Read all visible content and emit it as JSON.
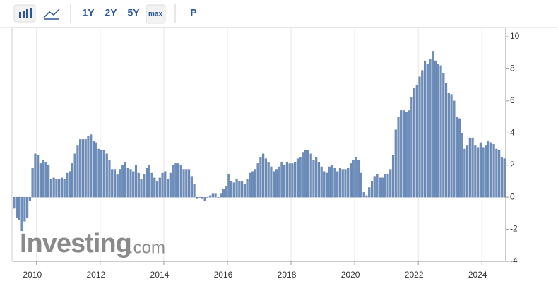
{
  "toolbar": {
    "buttons": [
      "1Y",
      "2Y",
      "5Y",
      "max",
      "P"
    ]
  },
  "watermark": {
    "brand": "Investing",
    "suffix": ".com"
  },
  "chart_data": {
    "type": "bar",
    "color": "#6f8fbd",
    "categories": [
      null,
      null,
      null,
      null,
      null,
      null,
      null,
      null,
      null,
      "2010",
      null,
      null,
      null,
      null,
      null,
      null,
      null,
      null,
      null,
      null,
      null,
      null,
      null,
      null,
      null,
      null,
      null,
      null,
      null,
      null,
      null,
      null,
      null,
      "2012",
      null,
      null,
      null,
      null,
      null,
      null,
      null,
      null,
      null,
      null,
      null,
      null,
      null,
      null,
      null,
      null,
      null,
      null,
      null,
      null,
      null,
      null,
      null,
      "2014",
      null,
      null,
      null,
      null,
      null,
      null,
      null,
      null,
      null,
      null,
      null,
      null,
      null,
      null,
      null,
      null,
      null,
      null,
      null,
      null,
      null,
      null,
      null,
      "2016",
      null,
      null,
      null,
      null,
      null,
      null,
      null,
      null,
      null,
      null,
      null,
      null,
      null,
      null,
      null,
      null,
      null,
      null,
      null,
      null,
      null,
      null,
      null,
      "2018",
      null,
      null,
      null,
      null,
      null,
      null,
      null,
      null,
      null,
      null,
      null,
      null,
      null,
      null,
      null,
      null,
      null,
      null,
      null,
      null,
      null,
      null,
      null,
      "2020",
      null,
      null,
      null,
      null,
      null,
      null,
      null,
      null,
      null,
      null,
      null,
      null,
      null,
      null,
      null,
      null,
      null,
      null,
      null,
      null,
      null,
      null,
      null,
      "2022",
      null,
      null,
      null,
      null,
      null,
      null,
      null,
      null,
      null,
      null,
      null,
      null,
      null,
      null,
      null,
      null,
      null,
      null,
      null,
      null,
      null,
      null,
      null,
      "2024",
      null,
      null,
      null,
      null,
      null,
      null,
      null,
      null
    ],
    "values": [
      -0.7,
      -1.3,
      -1.4,
      -2.1,
      -1.5,
      -1.3,
      -0.2,
      1.8,
      2.7,
      2.6,
      2.1,
      2.3,
      2.2,
      2.0,
      1.1,
      1.2,
      1.1,
      1.1,
      1.2,
      1.1,
      1.5,
      1.6,
      2.1,
      2.7,
      3.2,
      3.6,
      3.6,
      3.6,
      3.8,
      3.9,
      3.5,
      3.4,
      3.0,
      2.9,
      2.9,
      2.7,
      2.3,
      1.7,
      1.7,
      1.4,
      1.7,
      2.0,
      2.2,
      1.8,
      1.7,
      1.6,
      2.0,
      1.5,
      1.1,
      1.4,
      1.8,
      2.0,
      1.5,
      1.2,
      1.0,
      1.2,
      1.5,
      1.6,
      1.1,
      1.5,
      2.0,
      2.1,
      2.1,
      2.0,
      1.7,
      1.7,
      1.7,
      1.3,
      0.8,
      -0.1,
      0.0,
      -0.1,
      -0.2,
      0.0,
      0.1,
      0.2,
      0.2,
      0.0,
      0.2,
      0.5,
      0.7,
      1.4,
      1.0,
      0.9,
      1.1,
      1.0,
      1.0,
      0.8,
      1.1,
      1.5,
      1.6,
      1.7,
      2.1,
      2.5,
      2.7,
      2.4,
      2.2,
      1.9,
      1.6,
      1.7,
      1.9,
      2.2,
      2.0,
      2.2,
      2.1,
      2.1,
      2.2,
      2.4,
      2.5,
      2.8,
      2.9,
      2.9,
      2.7,
      2.3,
      2.5,
      2.2,
      1.9,
      1.6,
      1.5,
      1.9,
      2.0,
      1.8,
      1.6,
      1.8,
      1.7,
      1.7,
      1.8,
      2.1,
      2.3,
      2.5,
      2.3,
      1.5,
      0.3,
      0.1,
      0.6,
      1.0,
      1.3,
      1.4,
      1.2,
      1.2,
      1.4,
      1.4,
      1.7,
      2.6,
      4.2,
      5.0,
      5.4,
      5.4,
      5.3,
      5.4,
      6.2,
      6.8,
      7.0,
      7.5,
      7.9,
      8.5,
      8.3,
      8.6,
      9.1,
      8.5,
      8.3,
      8.2,
      7.7,
      7.1,
      6.5,
      6.4,
      6.0,
      5.0,
      4.9,
      4.0,
      3.0,
      3.2,
      3.7,
      3.7,
      3.2,
      3.1,
      3.4,
      3.1,
      3.2,
      3.5,
      3.4,
      3.3,
      3.0,
      2.9,
      2.5,
      2.4
    ],
    "ylim": [
      -4,
      10
    ],
    "yticks": [
      -4,
      -2,
      0,
      2,
      4,
      6,
      8,
      10
    ]
  }
}
